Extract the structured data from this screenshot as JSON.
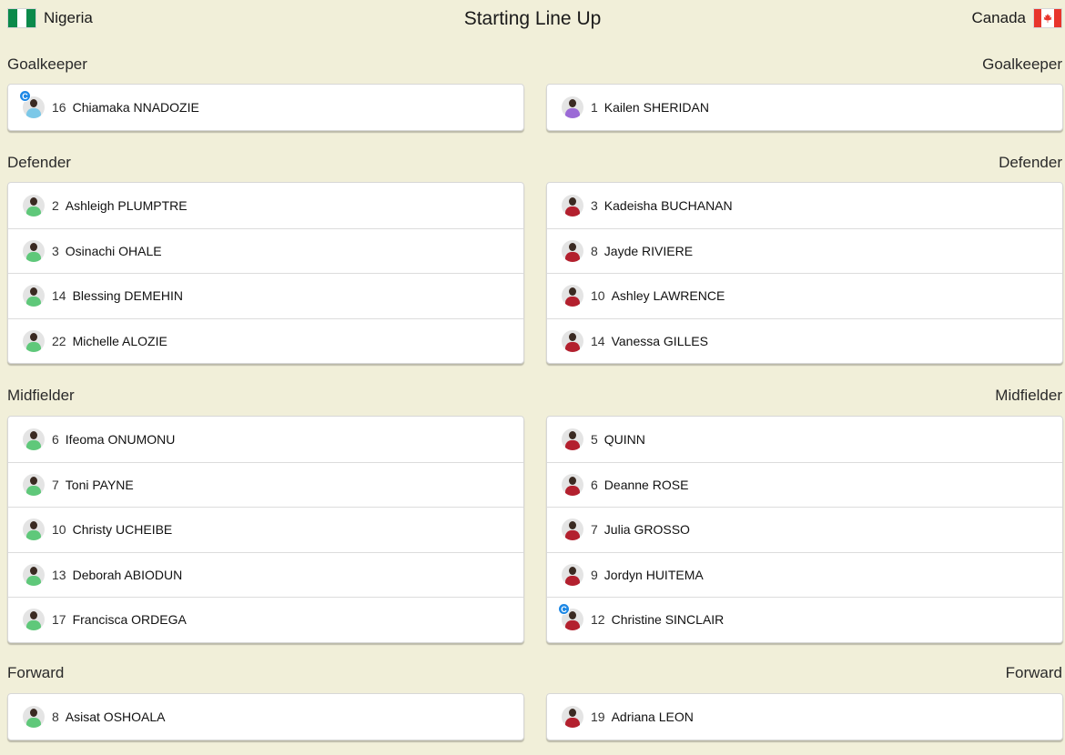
{
  "header": {
    "title": "Starting Line Up",
    "home_team": "Nigeria",
    "away_team": "Canada"
  },
  "colors": {
    "background": "#f1efd9",
    "nigeria_kit": "#5fc87a",
    "canada_kit": "#b3202e",
    "captain_badge": "#1e88e5"
  },
  "captain_badge_label": "C",
  "sections": [
    {
      "label": "Goalkeeper",
      "home": [
        {
          "number": "16",
          "name": "Chiamaka NNADOZIE",
          "captain": true,
          "kit": "#7bc8e8"
        }
      ],
      "away": [
        {
          "number": "1",
          "name": "Kailen SHERIDAN",
          "captain": false,
          "kit": "#9b6ad6"
        }
      ]
    },
    {
      "label": "Defender",
      "home": [
        {
          "number": "2",
          "name": "Ashleigh PLUMPTRE",
          "captain": false,
          "kit": "#5fc87a"
        },
        {
          "number": "3",
          "name": "Osinachi OHALE",
          "captain": false,
          "kit": "#5fc87a"
        },
        {
          "number": "14",
          "name": "Blessing DEMEHIN",
          "captain": false,
          "kit": "#5fc87a"
        },
        {
          "number": "22",
          "name": "Michelle ALOZIE",
          "captain": false,
          "kit": "#5fc87a"
        }
      ],
      "away": [
        {
          "number": "3",
          "name": "Kadeisha BUCHANAN",
          "captain": false,
          "kit": "#b3202e"
        },
        {
          "number": "8",
          "name": "Jayde RIVIERE",
          "captain": false,
          "kit": "#b3202e"
        },
        {
          "number": "10",
          "name": "Ashley LAWRENCE",
          "captain": false,
          "kit": "#b3202e"
        },
        {
          "number": "14",
          "name": "Vanessa GILLES",
          "captain": false,
          "kit": "#b3202e"
        }
      ]
    },
    {
      "label": "Midfielder",
      "home": [
        {
          "number": "6",
          "name": "Ifeoma ONUMONU",
          "captain": false,
          "kit": "#5fc87a"
        },
        {
          "number": "7",
          "name": "Toni PAYNE",
          "captain": false,
          "kit": "#5fc87a"
        },
        {
          "number": "10",
          "name": "Christy UCHEIBE",
          "captain": false,
          "kit": "#5fc87a"
        },
        {
          "number": "13",
          "name": "Deborah ABIODUN",
          "captain": false,
          "kit": "#5fc87a"
        },
        {
          "number": "17",
          "name": "Francisca ORDEGA",
          "captain": false,
          "kit": "#5fc87a"
        }
      ],
      "away": [
        {
          "number": "5",
          "name": "QUINN",
          "captain": false,
          "kit": "#b3202e"
        },
        {
          "number": "6",
          "name": "Deanne ROSE",
          "captain": false,
          "kit": "#b3202e"
        },
        {
          "number": "7",
          "name": "Julia GROSSO",
          "captain": false,
          "kit": "#b3202e"
        },
        {
          "number": "9",
          "name": "Jordyn HUITEMA",
          "captain": false,
          "kit": "#b3202e"
        },
        {
          "number": "12",
          "name": "Christine SINCLAIR",
          "captain": true,
          "kit": "#b3202e"
        }
      ]
    },
    {
      "label": "Forward",
      "home": [
        {
          "number": "8",
          "name": "Asisat OSHOALA",
          "captain": false,
          "kit": "#5fc87a"
        }
      ],
      "away": [
        {
          "number": "19",
          "name": "Adriana LEON",
          "captain": false,
          "kit": "#b3202e"
        }
      ]
    }
  ]
}
